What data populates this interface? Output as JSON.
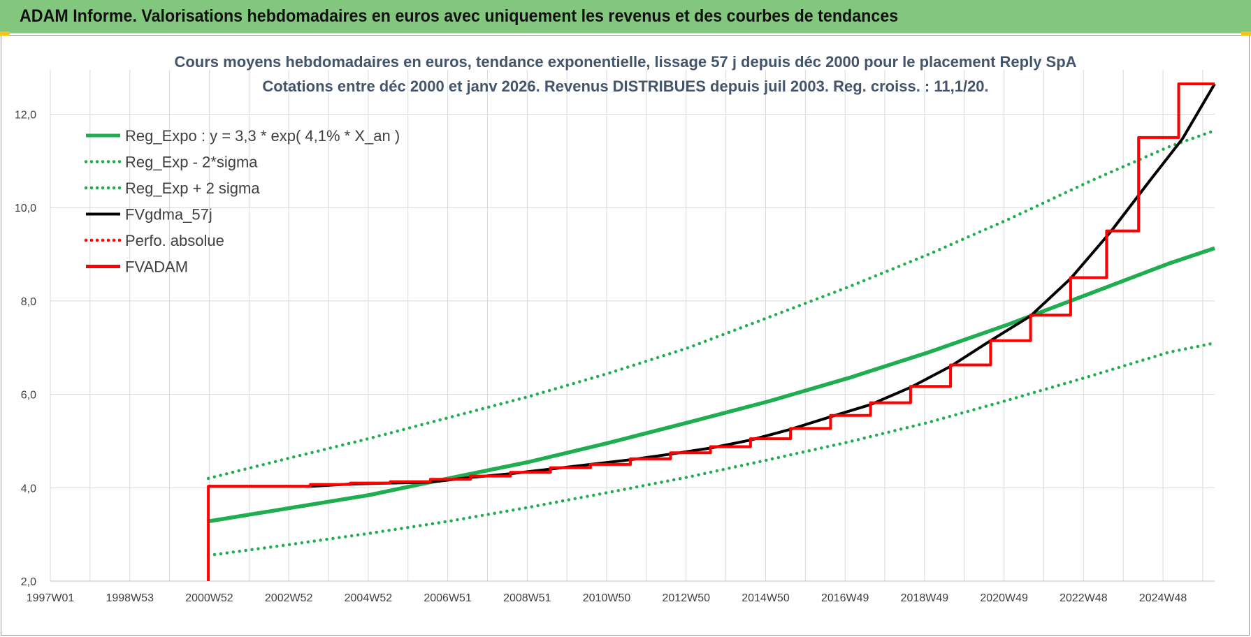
{
  "banner": {
    "title": "ADAM Informe. Valorisations hebdomadaires en euros avec uniquement les revenus et des courbes de tendances"
  },
  "colors": {
    "banner": "#82c77d",
    "regression": "#1fae4f",
    "fvgdma": "#000000",
    "fvadam": "#ff0000",
    "gridline": "#d9d9d9",
    "title_text": "#44546a"
  },
  "chart_data": {
    "type": "line",
    "title": "Cours moyens hebdomadaires en euros, tendance exponentielle, lissage 57 j depuis déc 2000 pour le placement Reply SpA",
    "subtitle": "Cotations entre déc 2000 et janv 2026. Revenus DISTRIBUES depuis juil 2003. Reg. croiss. : 11,1/20.",
    "xlabel": "",
    "ylabel": "",
    "x_ticks": [
      "1997W01",
      "1998W53",
      "2000W52",
      "2002W52",
      "2004W52",
      "2006W51",
      "2008W51",
      "2010W50",
      "2012W50",
      "2014W50",
      "2016W49",
      "2018W49",
      "2020W49",
      "2022W48",
      "2024W48"
    ],
    "x_range": [
      1997.0,
      2026.1
    ],
    "y_ticks": [
      "2,0",
      "4,0",
      "6,0",
      "8,0",
      "10,0",
      "12,0"
    ],
    "ylim": [
      2.0,
      12.95
    ],
    "grid": true,
    "legend_position": "top-left",
    "legend": [
      {
        "label": "Reg_Expo : y = 3,3 * exp( 4,1% *  X_an )",
        "color": "#1fae4f",
        "style": "solid"
      },
      {
        "label": "Reg_Exp - 2*sigma",
        "color": "#1fae4f",
        "style": "dotted"
      },
      {
        "label": "Reg_Exp + 2 sigma",
        "color": "#1fae4f",
        "style": "dotted"
      },
      {
        "label": "FVgdma_57j",
        "color": "#000000",
        "style": "solid"
      },
      {
        "label": "Perfo. absolue",
        "color": "#ff0000",
        "style": "dotted"
      },
      {
        "label": "FVADAM",
        "color": "#ff0000",
        "style": "solid"
      }
    ],
    "series": [
      {
        "name": "Reg_Expo : y = 3,3 * exp( 4,1% *  X_an )",
        "x": [
          2000.95,
          2002.95,
          2004.95,
          2006.95,
          2008.95,
          2010.95,
          2012.95,
          2014.95,
          2016.95,
          2018.95,
          2020.95,
          2022.95,
          2024.95,
          2026.1
        ],
        "values": [
          3.28,
          3.56,
          3.84,
          4.2,
          4.55,
          4.96,
          5.4,
          5.85,
          6.35,
          6.9,
          7.5,
          8.15,
          8.8,
          9.13
        ]
      },
      {
        "name": "Reg_Exp - 2*sigma",
        "x": [
          2000.95,
          2002.95,
          2004.95,
          2006.95,
          2008.95,
          2010.95,
          2012.95,
          2014.95,
          2016.95,
          2018.95,
          2020.95,
          2022.95,
          2024.95,
          2026.1
        ],
        "values": [
          2.55,
          2.78,
          3.02,
          3.28,
          3.58,
          3.9,
          4.23,
          4.6,
          4.98,
          5.4,
          5.88,
          6.38,
          6.9,
          7.1
        ]
      },
      {
        "name": "Reg_Exp + 2 sigma",
        "x": [
          2000.95,
          2002.95,
          2004.95,
          2006.95,
          2008.95,
          2010.95,
          2012.95,
          2014.95,
          2016.95,
          2018.95,
          2020.95,
          2022.95,
          2024.95,
          2026.1
        ],
        "values": [
          4.2,
          4.63,
          5.05,
          5.5,
          5.95,
          6.45,
          7.0,
          7.65,
          8.3,
          9.0,
          9.75,
          10.55,
          11.3,
          11.65
        ]
      },
      {
        "name": "FVgdma_57j",
        "x": [
          2000.95,
          2003.5,
          2004.5,
          2006.5,
          2007.5,
          2008.5,
          2009.5,
          2010.5,
          2011.5,
          2012.5,
          2013.5,
          2014.5,
          2015.5,
          2016.5,
          2017.5,
          2018.5,
          2019.5,
          2020.5,
          2021.5,
          2022.5,
          2023.5,
          2024.5,
          2025.3,
          2026.1
        ],
        "values": [
          4.03,
          4.03,
          4.08,
          4.12,
          4.22,
          4.3,
          4.4,
          4.5,
          4.6,
          4.72,
          4.85,
          5.02,
          5.25,
          5.52,
          5.78,
          6.15,
          6.6,
          7.15,
          7.68,
          8.48,
          9.48,
          10.6,
          11.48,
          12.65
        ]
      },
      {
        "name": "FVADAM",
        "x": [
          2000.95,
          2000.95,
          2003.5,
          2003.5,
          2004.5,
          2004.5,
          2005.5,
          2005.5,
          2006.5,
          2006.5,
          2007.5,
          2007.5,
          2008.5,
          2008.5,
          2009.5,
          2009.5,
          2010.5,
          2010.5,
          2011.5,
          2011.5,
          2012.5,
          2012.5,
          2013.5,
          2013.5,
          2014.5,
          2014.5,
          2015.5,
          2015.5,
          2016.5,
          2016.5,
          2017.5,
          2017.5,
          2018.5,
          2018.5,
          2019.5,
          2019.5,
          2020.5,
          2020.5,
          2021.5,
          2021.5,
          2022.5,
          2022.5,
          2023.4,
          2023.4,
          2024.2,
          2024.2,
          2025.2,
          2025.2,
          2026.1
        ],
        "values": [
          2.0,
          4.03,
          4.03,
          4.07,
          4.07,
          4.1,
          4.1,
          4.13,
          4.13,
          4.18,
          4.18,
          4.25,
          4.25,
          4.33,
          4.33,
          4.43,
          4.43,
          4.5,
          4.5,
          4.62,
          4.62,
          4.75,
          4.75,
          4.88,
          4.88,
          5.05,
          5.05,
          5.27,
          5.27,
          5.55,
          5.55,
          5.82,
          5.82,
          6.17,
          6.17,
          6.63,
          6.63,
          7.15,
          7.15,
          7.7,
          7.7,
          8.5,
          8.5,
          9.5,
          9.5,
          11.5,
          11.5,
          12.65,
          12.65
        ]
      }
    ]
  }
}
